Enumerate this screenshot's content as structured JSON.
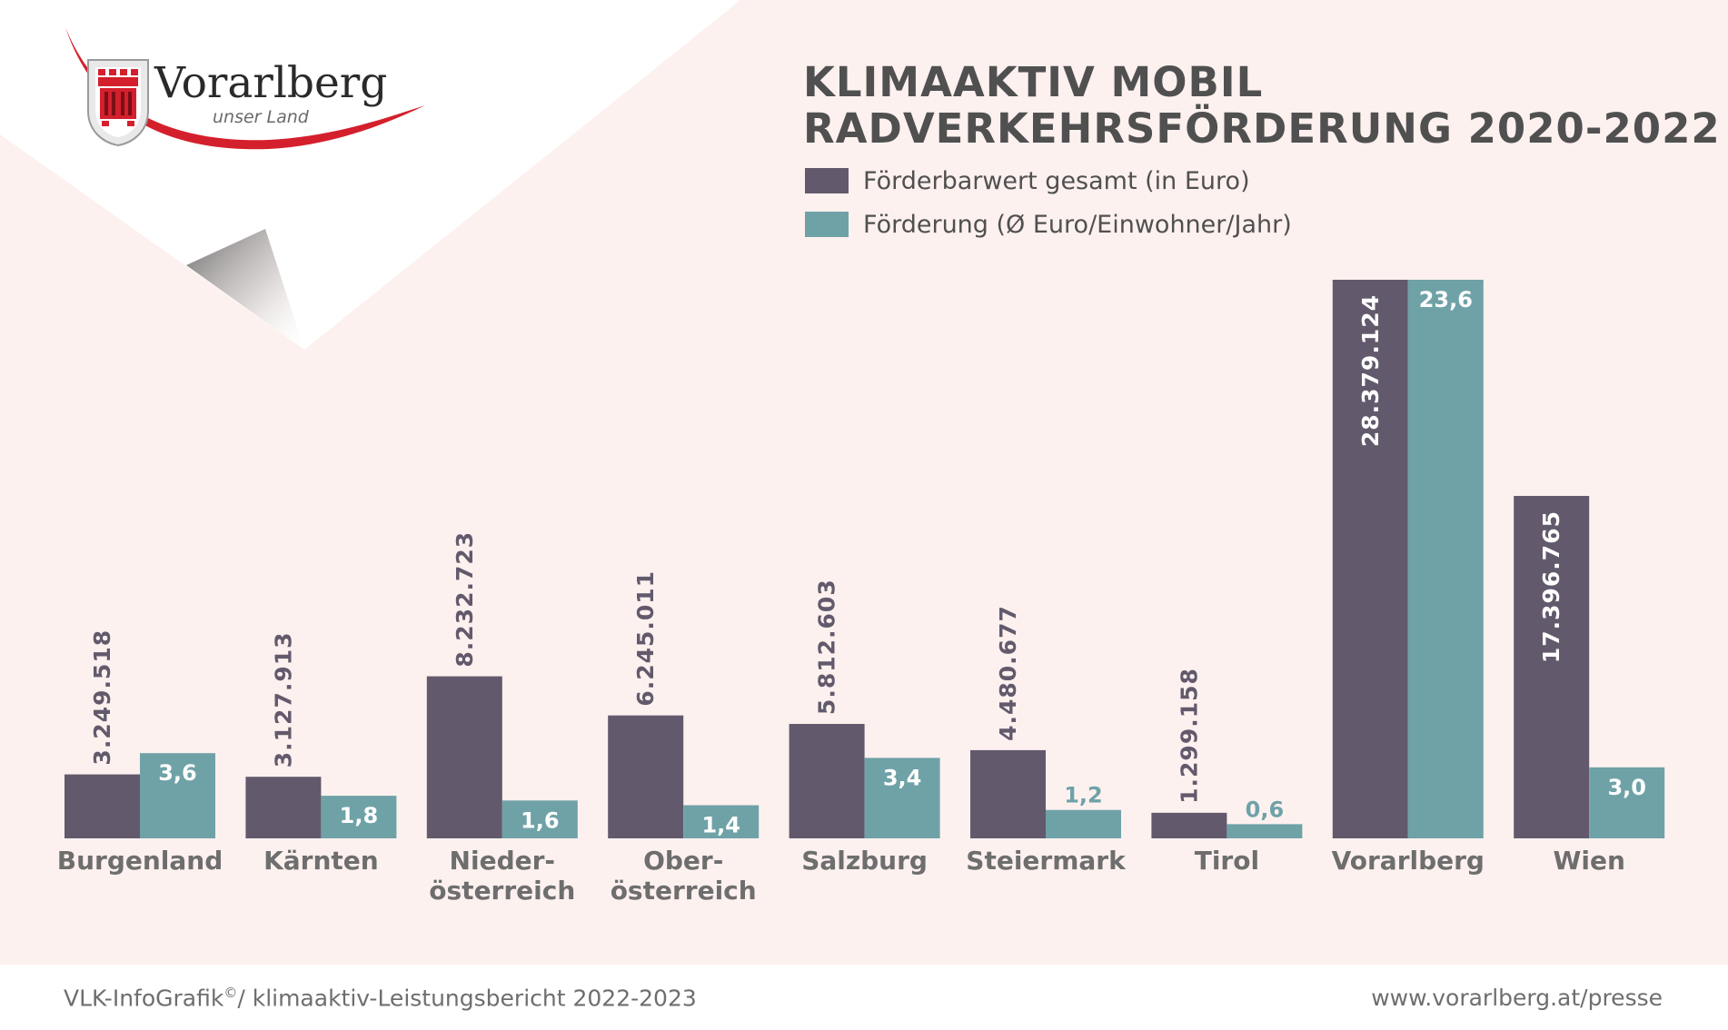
{
  "title": {
    "line1": "KLIMAAKTIV MOBIL",
    "line2": "RADVERKEHRSFÖRDERUNG 2020-2022"
  },
  "logo": {
    "name": "Vorarlberg",
    "tagline": "unser Land"
  },
  "colors": {
    "series1": "#625a6c",
    "series2": "#6fa2a7",
    "background": "#fdf1ef",
    "title": "#505050",
    "category_label": "#6e6e6e",
    "logo_red": "#d4202c"
  },
  "chart_data": {
    "type": "bar",
    "categories": [
      [
        "Burgenland"
      ],
      [
        "Kärnten"
      ],
      [
        "Nieder-",
        "österreich"
      ],
      [
        "Ober-",
        "österreich"
      ],
      [
        "Salzburg"
      ],
      [
        "Steiermark"
      ],
      [
        "Tirol"
      ],
      [
        "Vorarlberg"
      ],
      [
        "Wien"
      ]
    ],
    "series": [
      {
        "name": "Förderbarwert gesamt (in Euro)",
        "values": [
          3249518,
          3127913,
          8232723,
          6245011,
          5812603,
          4480677,
          1299158,
          28379124,
          17396765
        ],
        "labels": [
          "3.249.518",
          "3.127.913",
          "8.232.723",
          "6.245.011",
          "5.812.603",
          "4.480.677",
          "1.299.158",
          "28.379.124",
          "17.396.765"
        ]
      },
      {
        "name": "Förderung (Ø Euro/Einwohner/Jahr)",
        "values": [
          3.6,
          1.8,
          1.6,
          1.4,
          3.4,
          1.2,
          0.6,
          23.6,
          3.0
        ],
        "labels": [
          "3,6",
          "1,8",
          "1,6",
          "1,4",
          "3,4",
          "1,2",
          "0,6",
          "23,6",
          "3,0"
        ]
      }
    ],
    "legend_position": "top-right",
    "grid": false,
    "axes_visible": false
  },
  "footer": {
    "source": "VLK-InfoGrafik",
    "source_mark": "©",
    "source_rest": "/ klimaaktiv-Leistungsbericht 2022-2023",
    "url": "www.vorarlberg.at/presse"
  }
}
